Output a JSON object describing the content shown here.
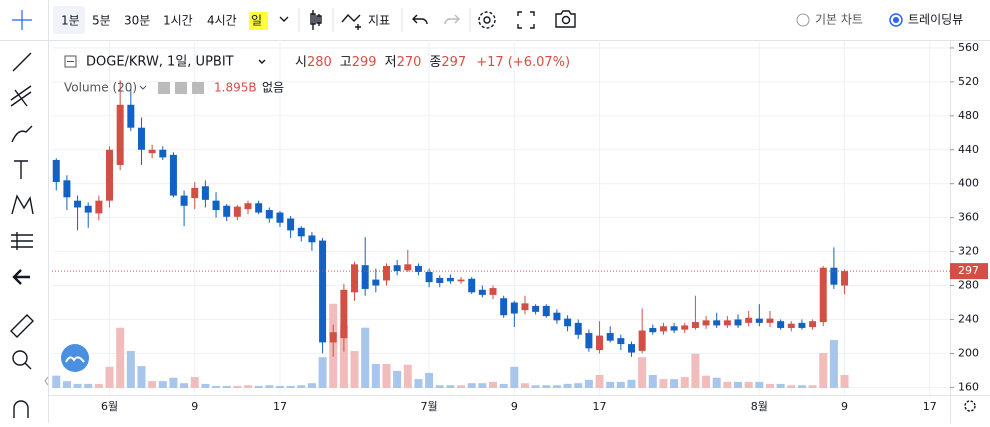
{
  "toolbar": {
    "intervals": [
      "1분",
      "5분",
      "30분",
      "1시간",
      "4시간",
      "일"
    ],
    "indicators": "지표",
    "chart_modes": [
      "기본 차트",
      "트레이딩뷰"
    ]
  },
  "chart_data": {
    "type": "candlestick",
    "title": "DOGE/KRW, 1일, UPBIT",
    "ohlc_labels": [
      "시",
      "고",
      "저",
      "종"
    ],
    "change_label": "+17 (+6.07%)",
    "volume_title": "Volume (20)",
    "volume_value_label": "1.895B",
    "volume_extra": "없음",
    "up_color": "#d24f45",
    "down_color": "#1261c4",
    "up_volume_color": "#f1bcbc",
    "down_volume_color": "#a8c5ec",
    "open": [
      428,
      404,
      380,
      374,
      365,
      380,
      422,
      493,
      466,
      436,
      440,
      434,
      386,
      383,
      397,
      380,
      374,
      361,
      370,
      377,
      369,
      366,
      359,
      348,
      339,
      333,
      213,
      218,
      272,
      304,
      287,
      286,
      304,
      298,
      303,
      296,
      289,
      289,
      285,
      288,
      275,
      269,
      265,
      260,
      251,
      256,
      256,
      248,
      241,
      236,
      224,
      204,
      224,
      218,
      211,
      203,
      230,
      226,
      232,
      228,
      230,
      233,
      239,
      233,
      240,
      236,
      241,
      236,
      238,
      230,
      236,
      231,
      237,
      301,
      280
    ],
    "high": [
      430,
      410,
      386,
      378,
      386,
      444,
      522,
      512,
      478,
      446,
      444,
      437,
      392,
      402,
      404,
      390,
      376,
      375,
      380,
      380,
      372,
      368,
      362,
      350,
      343,
      336,
      234,
      282,
      308,
      337,
      300,
      306,
      310,
      322,
      306,
      300,
      292,
      293,
      290,
      290,
      280,
      280,
      268,
      262,
      268,
      258,
      258,
      252,
      245,
      240,
      228,
      238,
      232,
      222,
      214,
      253,
      234,
      236,
      236,
      236,
      268,
      244,
      248,
      244,
      246,
      250,
      258,
      250,
      240,
      238,
      240,
      240,
      303,
      325,
      299
    ],
    "low": [
      392,
      369,
      345,
      348,
      357,
      372,
      416,
      462,
      422,
      430,
      428,
      384,
      350,
      370,
      372,
      360,
      356,
      357,
      364,
      364,
      354,
      349,
      336,
      332,
      321,
      200,
      196,
      202,
      262,
      268,
      272,
      280,
      292,
      296,
      292,
      278,
      278,
      282,
      282,
      270,
      266,
      264,
      242,
      231,
      246,
      246,
      242,
      235,
      226,
      217,
      202,
      200,
      213,
      204,
      196,
      200,
      222,
      222,
      224,
      224,
      228,
      229,
      230,
      230,
      230,
      232,
      232,
      231,
      228,
      226,
      228,
      228,
      232,
      276,
      270
    ],
    "close": [
      402,
      384,
      372,
      366,
      380,
      440,
      493,
      466,
      440,
      440,
      431,
      386,
      374,
      395,
      381,
      369,
      361,
      373,
      377,
      366,
      359,
      354,
      345,
      338,
      331,
      213,
      225,
      275,
      305,
      276,
      280,
      303,
      297,
      305,
      296,
      284,
      283,
      285,
      287,
      272,
      269,
      277,
      245,
      247,
      259,
      249,
      244,
      239,
      232,
      222,
      206,
      221,
      215,
      211,
      201,
      227,
      225,
      232,
      227,
      233,
      237,
      239,
      233,
      239,
      233,
      242,
      236,
      241,
      230,
      235,
      230,
      238,
      301,
      281,
      297
    ],
    "volume": [
      1.8,
      1.0,
      0.6,
      0.6,
      0.6,
      3.1,
      8.8,
      5.4,
      3.2,
      1.0,
      1.0,
      1.5,
      0.7,
      1.6,
      0.6,
      0.3,
      0.3,
      0.3,
      0.4,
      0.3,
      0.4,
      0.3,
      0.3,
      0.4,
      0.7,
      4.5,
      12.3,
      9.1,
      5.4,
      8.8,
      3.5,
      3.5,
      2.5,
      3.4,
      1.3,
      2.2,
      0.4,
      0.4,
      0.4,
      0.7,
      0.7,
      0.9,
      0.6,
      3.1,
      0.7,
      0.4,
      0.4,
      0.4,
      0.6,
      0.7,
      1.2,
      1.9,
      0.9,
      0.9,
      1.2,
      4.5,
      1.9,
      1.3,
      1.3,
      1.6,
      5.0,
      1.8,
      1.5,
      0.9,
      0.9,
      0.9,
      0.9,
      0.6,
      0.6,
      0.4,
      0.4,
      0.4,
      5.1,
      7.0,
      1.895
    ],
    "volume_ylim": [
      0,
      20
    ],
    "ylim": [
      151,
      567
    ],
    "yticks": [
      160,
      200,
      240,
      280,
      320,
      360,
      400,
      440,
      480,
      520,
      560
    ],
    "xlim": [
      -0.4,
      83.9
    ],
    "xticks": [
      {
        "value": 5,
        "label": "6월"
      },
      {
        "value": 13,
        "label": "9"
      },
      {
        "value": 21,
        "label": "17"
      },
      {
        "value": 35,
        "label": "7월"
      },
      {
        "value": 43,
        "label": "9"
      },
      {
        "value": 51,
        "label": "17"
      },
      {
        "value": 66,
        "label": "8월"
      },
      {
        "value": 74,
        "label": "9"
      },
      {
        "value": 82,
        "label": "17"
      }
    ],
    "grid": true
  }
}
